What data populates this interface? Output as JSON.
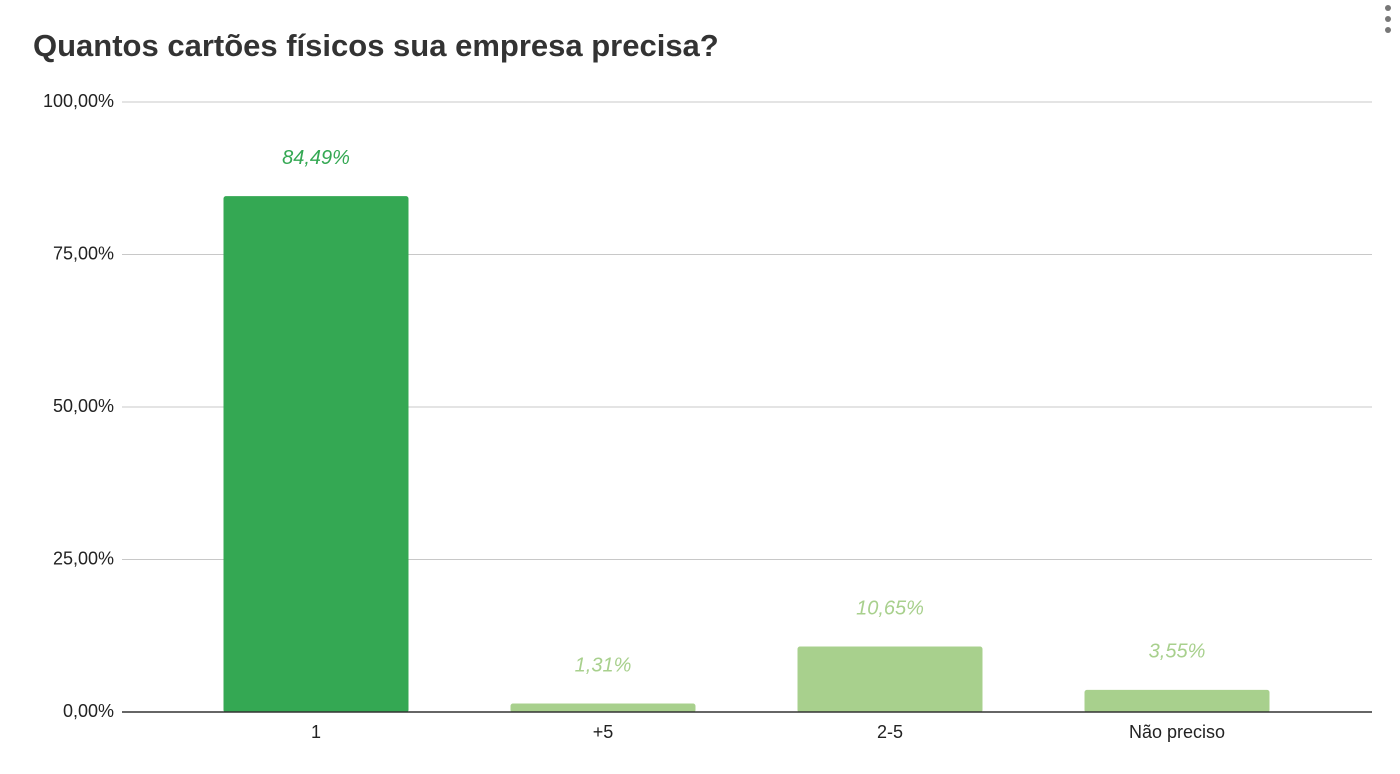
{
  "chart_data": {
    "type": "bar",
    "title": "Quantos cartões físicos sua empresa precisa?",
    "categories": [
      "1",
      "+5",
      "2-5",
      "Não preciso"
    ],
    "values": [
      84.49,
      1.31,
      10.65,
      3.55
    ],
    "value_labels": [
      "84,49%",
      "1,31%",
      "10,65%",
      "3,55%"
    ],
    "colors": [
      "#34a853",
      "#a8d08d",
      "#a8d08d",
      "#a8d08d"
    ],
    "ylim": [
      0,
      100
    ],
    "yticks": [
      {
        "value": 0,
        "label": "0,00%"
      },
      {
        "value": 25,
        "label": "25,00%"
      },
      {
        "value": 50,
        "label": "50,00%"
      },
      {
        "value": 75,
        "label": "75,00%"
      },
      {
        "value": 100,
        "label": "100,00%"
      }
    ],
    "grid": true
  }
}
